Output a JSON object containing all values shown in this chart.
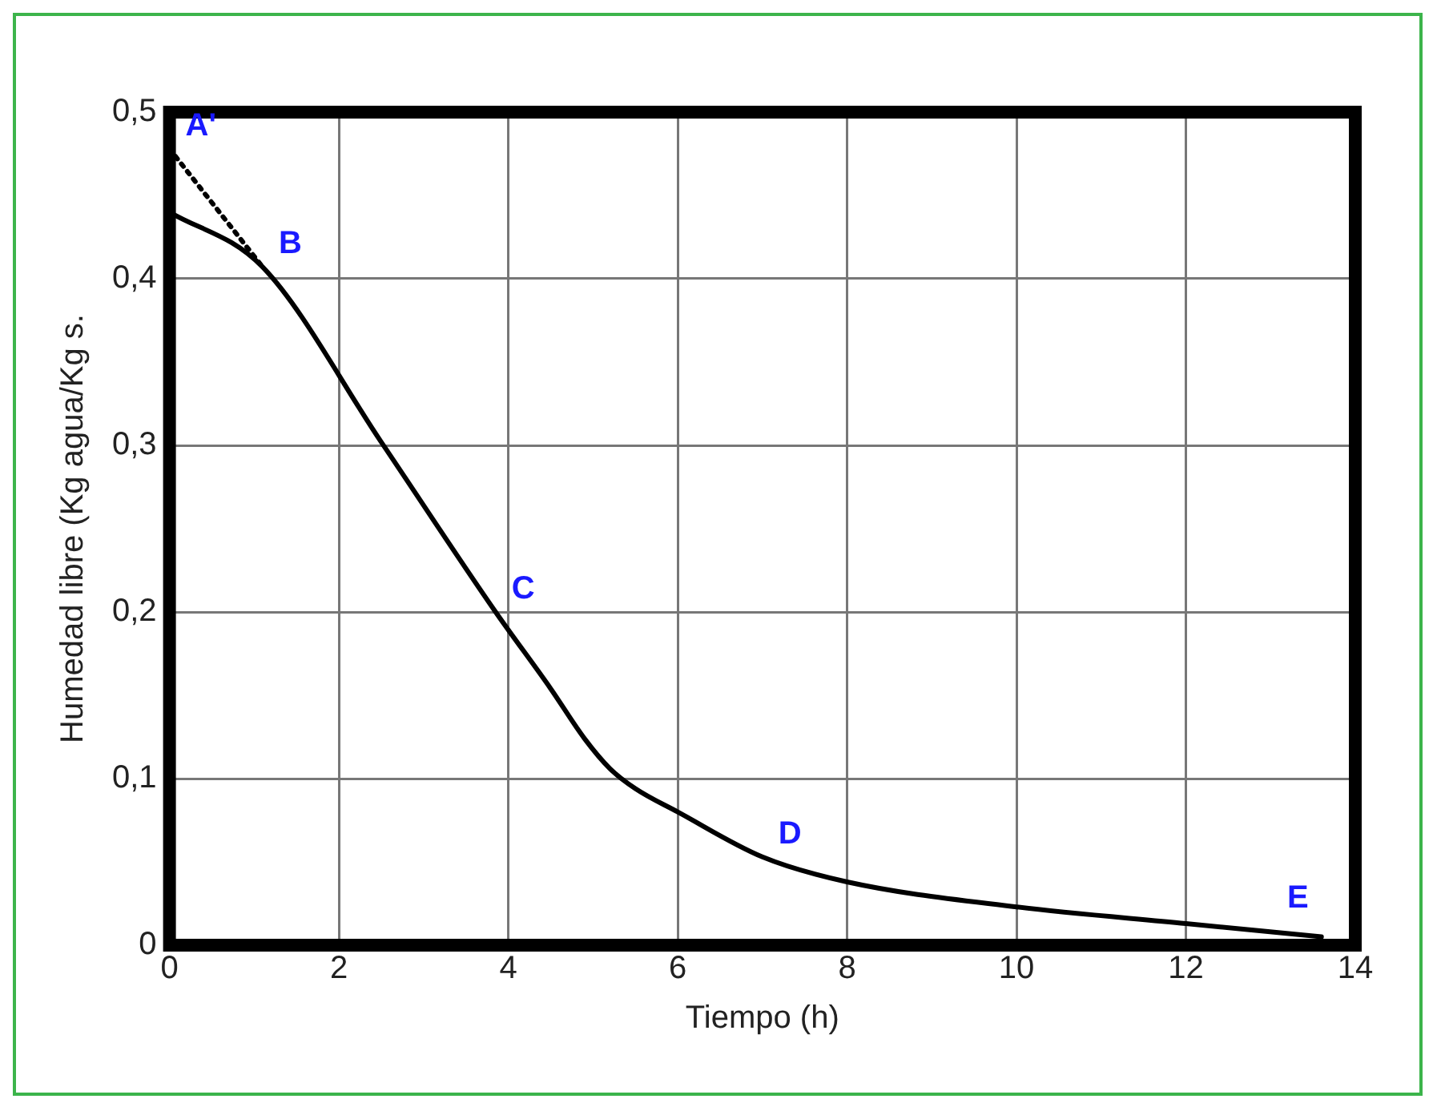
{
  "chart_data": {
    "type": "line",
    "xlabel": "Tiempo (h)",
    "ylabel": "Humedad libre (Kg agua/Kg s.",
    "series": [
      {
        "color": "#000000",
        "line_style": "solid",
        "x": [
          0,
          1.1,
          2.5,
          3.85,
          4.5,
          4.9,
          5.2,
          5.5,
          6,
          7,
          8,
          10,
          12,
          13.6
        ],
        "values": [
          0.44,
          0.407,
          0.302,
          0.2,
          0.154,
          0.124,
          0.106,
          0.094,
          0.08,
          0.053,
          0.038,
          0.023,
          0.013,
          0.005
        ]
      },
      {
        "color": "#000000",
        "line_style": "dotted",
        "x": [
          0,
          1.1
        ],
        "values": [
          0.478,
          0.407
        ]
      }
    ],
    "xlim": [
      0,
      14
    ],
    "xticks": [
      0,
      2,
      4,
      6,
      8,
      10,
      12,
      14
    ],
    "ylim": [
      0,
      0.5
    ],
    "yticks": [
      {
        "value": 0,
        "label": "0"
      },
      {
        "value": 0.1,
        "label": "0,1"
      },
      {
        "value": 0.2,
        "label": "0,2"
      },
      {
        "value": 0.3,
        "label": "0,3"
      },
      {
        "value": 0.4,
        "label": "0,4"
      },
      {
        "value": 0.5,
        "label": "0,5"
      }
    ],
    "grid": true,
    "marker": "none",
    "legend": false,
    "annotations": [
      {
        "text": "A'",
        "x": 0,
        "y": 0.478
      },
      {
        "text": "B",
        "x": 1.1,
        "y": 0.407
      },
      {
        "text": "C",
        "x": 3.85,
        "y": 0.2
      },
      {
        "text": "D",
        "x": 7,
        "y": 0.053
      },
      {
        "text": "E",
        "x": 13.6,
        "y": 0.005
      }
    ]
  }
}
